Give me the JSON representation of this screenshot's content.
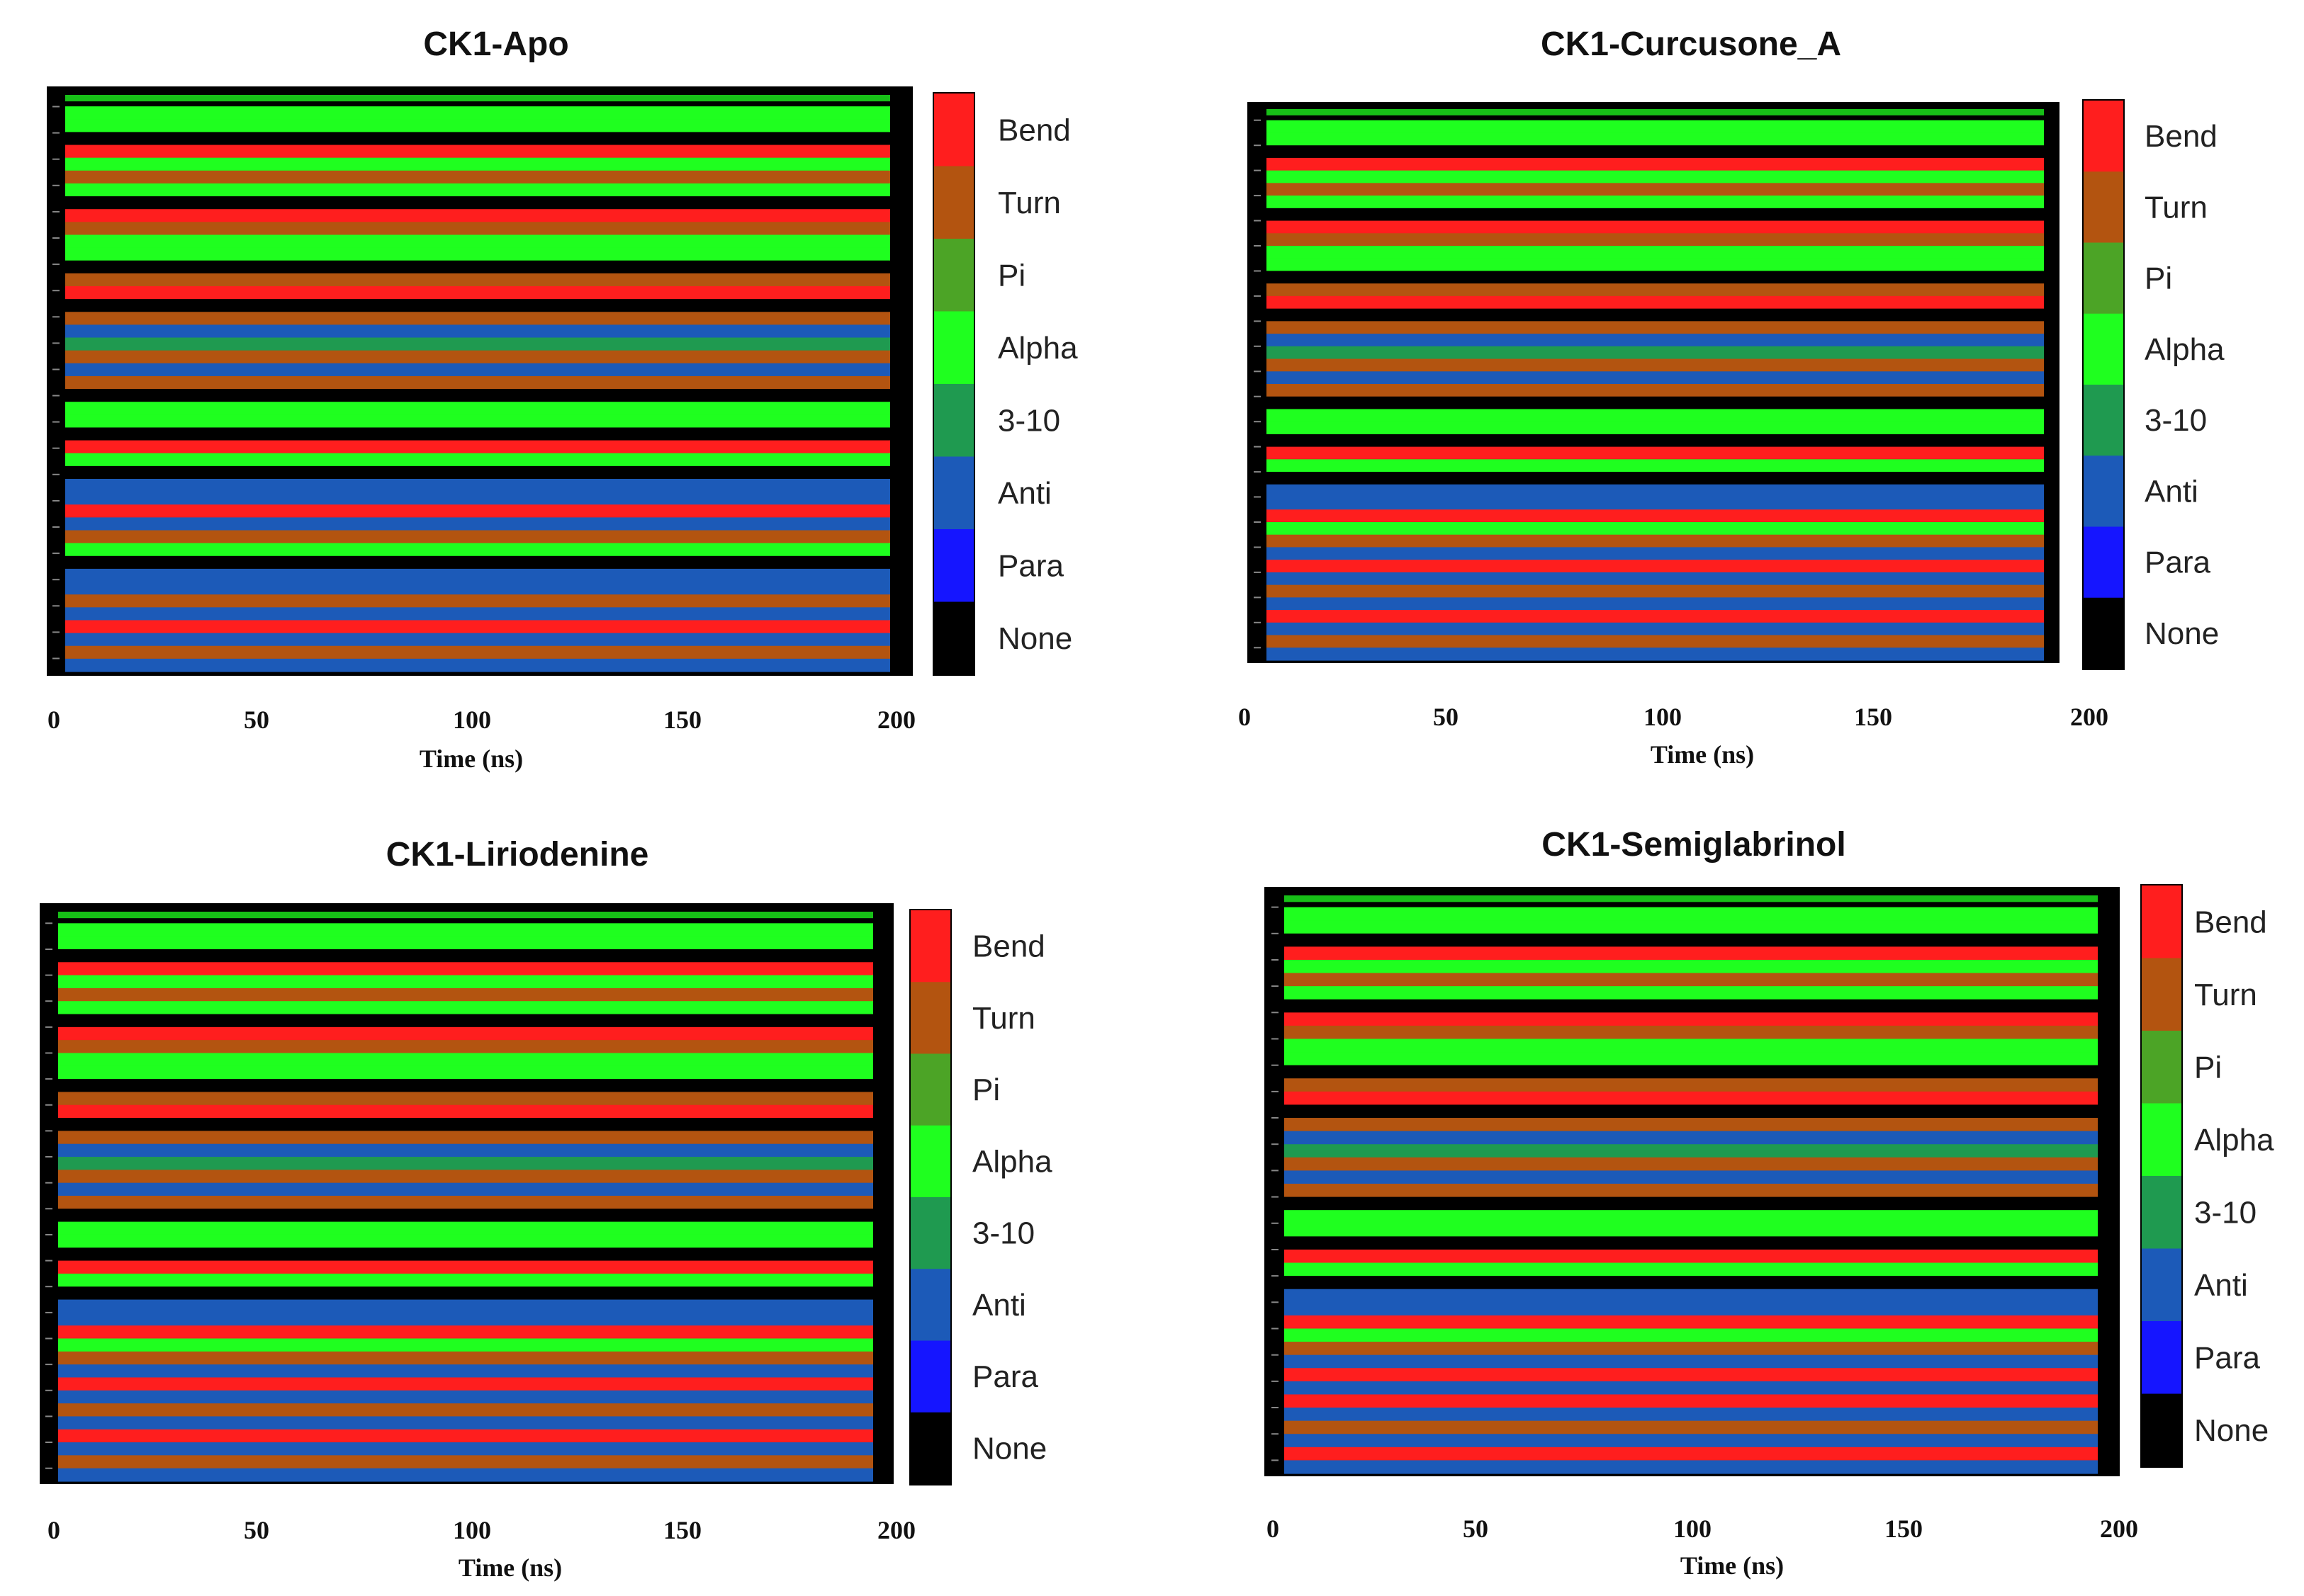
{
  "figure": {
    "legend_states": [
      {
        "name": "Bend",
        "color": "#ff1e1e"
      },
      {
        "name": "Turn",
        "color": "#b35410"
      },
      {
        "name": "Pi",
        "color": "#4ca426"
      },
      {
        "name": "Alpha",
        "color": "#1fff1f"
      },
      {
        "name": "3-10",
        "color": "#1f9a50"
      },
      {
        "name": "Anti",
        "color": "#1c5ab8"
      },
      {
        "name": "Para",
        "color": "#1515ff"
      },
      {
        "name": "None",
        "color": "#000000"
      }
    ]
  },
  "chart_data": [
    {
      "type": "heatmap",
      "title": "CK1-Apo",
      "xlabel": "Time (ns)",
      "xlim": [
        0,
        200
      ],
      "xticks": [
        0,
        50,
        100,
        150,
        200
      ],
      "legend": [
        "Bend",
        "Turn",
        "Pi",
        "Alpha",
        "3-10",
        "Anti",
        "Para",
        "None"
      ],
      "residue_bands": [
        "None",
        "Alpha",
        "Alpha",
        "None",
        "Bend",
        "Alpha",
        "Turn",
        "Alpha",
        "None",
        "Bend",
        "Turn",
        "Alpha",
        "Alpha",
        "None",
        "Turn",
        "Bend",
        "None",
        "Turn",
        "Anti",
        "3-10",
        "Turn",
        "Anti",
        "Turn",
        "None",
        "Alpha",
        "Alpha",
        "None",
        "Bend",
        "Alpha",
        "None",
        "Anti",
        "Anti",
        "Bend",
        "Anti",
        "Turn",
        "Alpha",
        "None",
        "Anti",
        "Anti",
        "Turn",
        "Anti",
        "Bend",
        "Anti",
        "Turn",
        "Anti"
      ]
    },
    {
      "type": "heatmap",
      "title": "CK1-Curcusone_A",
      "xlabel": "Time (ns)",
      "xlim": [
        0,
        200
      ],
      "xticks": [
        0,
        50,
        100,
        150,
        200
      ],
      "legend": [
        "Bend",
        "Turn",
        "Pi",
        "Alpha",
        "3-10",
        "Anti",
        "Para",
        "None"
      ],
      "residue_bands": [
        "None",
        "Alpha",
        "Alpha",
        "None",
        "Bend",
        "Alpha",
        "Turn",
        "Alpha",
        "None",
        "Bend",
        "Turn",
        "Alpha",
        "Alpha",
        "None",
        "Turn",
        "Bend",
        "None",
        "Turn",
        "Anti",
        "3-10",
        "Turn",
        "Anti",
        "Turn",
        "None",
        "Alpha",
        "Alpha",
        "None",
        "Bend",
        "Alpha",
        "None",
        "Anti",
        "Anti",
        "Bend",
        "Alpha",
        "Turn",
        "Anti",
        "Bend",
        "Anti",
        "Turn",
        "Anti",
        "Bend",
        "Anti",
        "Turn",
        "Anti"
      ]
    },
    {
      "type": "heatmap",
      "title": "CK1-Liriodenine",
      "xlabel": "Time (ns)",
      "xlim": [
        0,
        200
      ],
      "xticks": [
        0,
        50,
        100,
        150,
        200
      ],
      "legend": [
        "Bend",
        "Turn",
        "Pi",
        "Alpha",
        "3-10",
        "Anti",
        "Para",
        "None"
      ],
      "residue_bands": [
        "None",
        "Alpha",
        "Alpha",
        "None",
        "Bend",
        "Alpha",
        "Turn",
        "Alpha",
        "None",
        "Bend",
        "Turn",
        "Alpha",
        "Alpha",
        "None",
        "Turn",
        "Bend",
        "None",
        "Turn",
        "Anti",
        "3-10",
        "Turn",
        "Anti",
        "Turn",
        "None",
        "Alpha",
        "Alpha",
        "None",
        "Bend",
        "Alpha",
        "None",
        "Anti",
        "Anti",
        "Bend",
        "Alpha",
        "Turn",
        "Anti",
        "Bend",
        "Anti",
        "Turn",
        "Anti",
        "Bend",
        "Anti",
        "Turn",
        "Anti"
      ]
    },
    {
      "type": "heatmap",
      "title": "CK1-Semiglabrinol",
      "xlabel": "Time (ns)",
      "xlim": [
        0,
        200
      ],
      "xticks": [
        0,
        50,
        100,
        150,
        200
      ],
      "legend": [
        "Bend",
        "Turn",
        "Pi",
        "Alpha",
        "3-10",
        "Anti",
        "Para",
        "None"
      ],
      "residue_bands": [
        "None",
        "Alpha",
        "Alpha",
        "None",
        "Bend",
        "Alpha",
        "Turn",
        "Alpha",
        "None",
        "Bend",
        "Turn",
        "Alpha",
        "Alpha",
        "None",
        "Turn",
        "Bend",
        "None",
        "Turn",
        "Anti",
        "3-10",
        "Turn",
        "Anti",
        "Turn",
        "None",
        "Alpha",
        "Alpha",
        "None",
        "Bend",
        "Alpha",
        "None",
        "Anti",
        "Anti",
        "Bend",
        "Alpha",
        "Turn",
        "Anti",
        "Bend",
        "Anti",
        "Bend",
        "Anti",
        "Turn",
        "Anti",
        "Bend",
        "Anti"
      ]
    }
  ]
}
